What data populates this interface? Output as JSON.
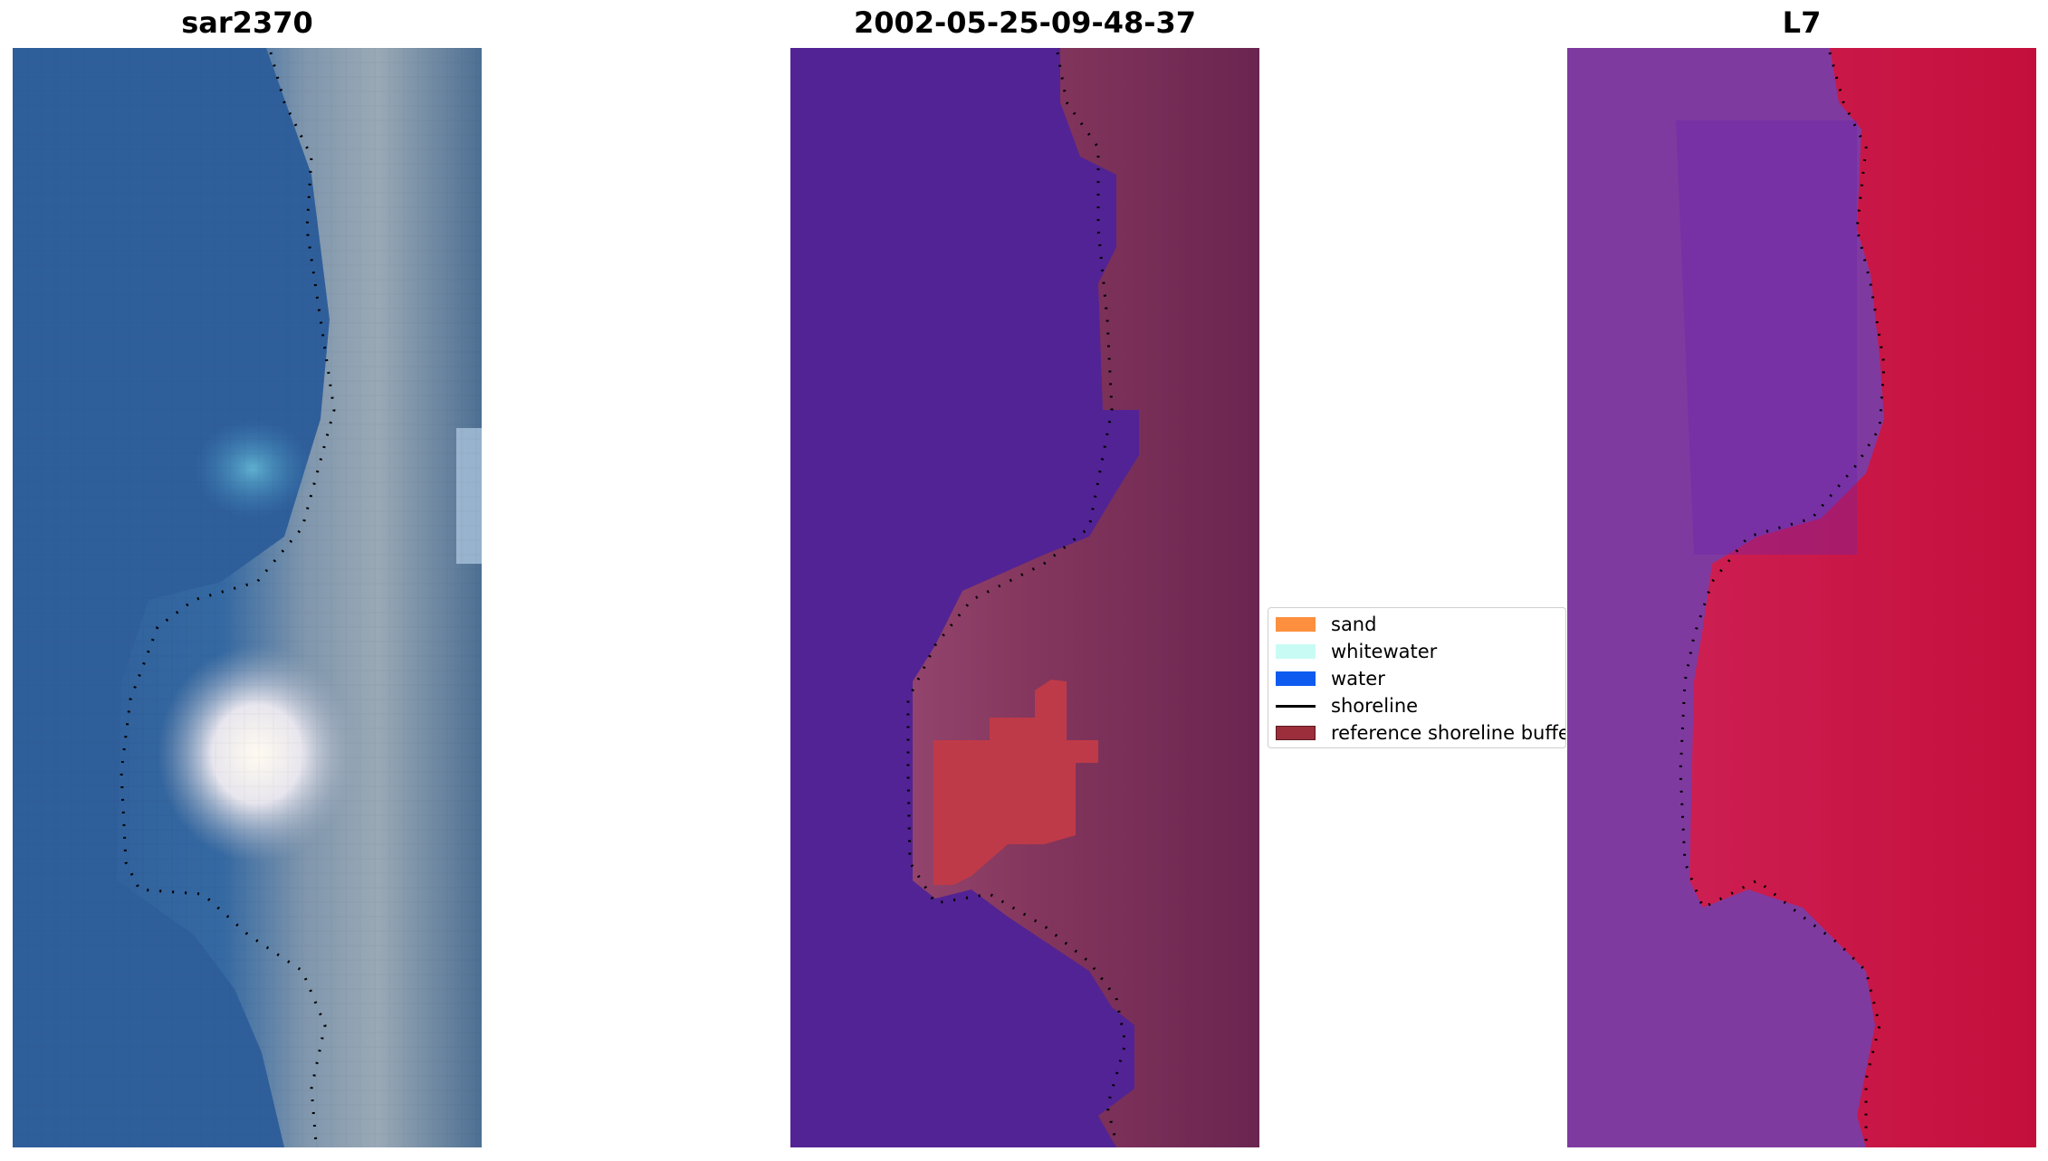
{
  "titles": {
    "left": "sar2370",
    "middle": "2002-05-25-09-48-37",
    "right": "L7"
  },
  "legend": {
    "items": [
      {
        "label": "sand",
        "color": "#fd8f3e",
        "kind": "patch"
      },
      {
        "label": "whitewater",
        "color": "#c8fbf4",
        "kind": "patch"
      },
      {
        "label": "water",
        "color": "#0f5bf0",
        "kind": "patch"
      },
      {
        "label": "shoreline",
        "color": "#000000",
        "kind": "line"
      },
      {
        "label": "reference shoreline buffer",
        "color": "#9b2e3a",
        "kind": "patch"
      }
    ]
  },
  "colors": {
    "rgb_water": "#31609b",
    "rgb_sand": "#9aa8b5",
    "classified_water": "#522394",
    "classified_land": "#86365f",
    "classified_buffer": "#bf3a48",
    "index_water": "#7f3aa0",
    "index_land": "#c6113d"
  }
}
